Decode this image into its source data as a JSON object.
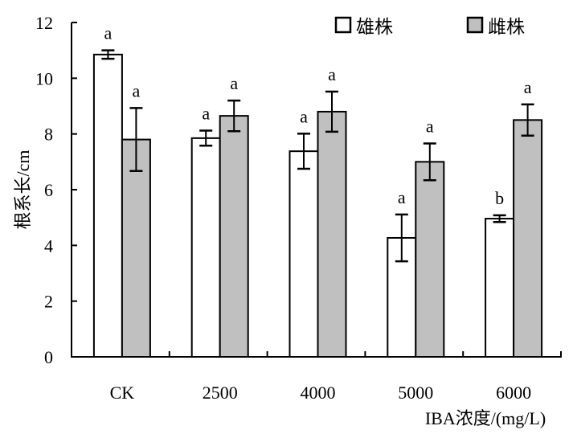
{
  "chart_data": {
    "type": "bar",
    "title": "",
    "xlabel": "IBA浓度/(mg/L)",
    "ylabel": "根系长/cm",
    "ylim": [
      0,
      12
    ],
    "yticks": [
      "0",
      "2",
      "4",
      "6",
      "8",
      "10",
      "12"
    ],
    "categories": [
      "CK",
      "2500",
      "4000",
      "5000",
      "6000"
    ],
    "legend_position": "top-right",
    "series": [
      {
        "name": "雄株",
        "color": "#ffffff",
        "values": [
          10.85,
          7.85,
          7.38,
          4.27,
          4.96
        ],
        "errors": [
          0.15,
          0.27,
          0.63,
          0.84,
          0.12
        ],
        "labels": [
          "a",
          "a",
          "a",
          "a",
          "b"
        ]
      },
      {
        "name": "雌株",
        "color": "#c0c0c0",
        "values": [
          7.8,
          8.65,
          8.8,
          7.0,
          8.5
        ],
        "errors": [
          1.13,
          0.55,
          0.72,
          0.66,
          0.56
        ],
        "labels": [
          "a",
          "a",
          "a",
          "a",
          "a"
        ]
      }
    ]
  }
}
